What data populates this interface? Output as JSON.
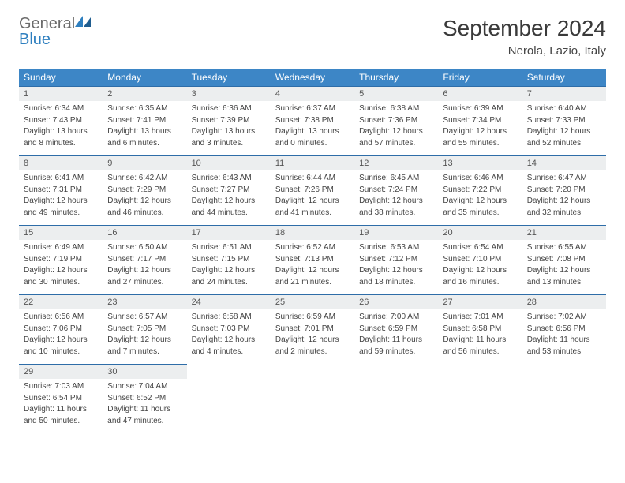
{
  "logo": {
    "textGray": "General",
    "textBlue": "Blue"
  },
  "title": "September 2024",
  "location": "Nerola, Lazio, Italy",
  "colors": {
    "headerBg": "#3d86c6",
    "headerText": "#ffffff",
    "dayNumBg": "#eceeef",
    "borderTop": "#2e6da8",
    "logoGray": "#6b6b6b",
    "logoBlue": "#2e7fbf"
  },
  "weekdays": [
    "Sunday",
    "Monday",
    "Tuesday",
    "Wednesday",
    "Thursday",
    "Friday",
    "Saturday"
  ],
  "weeks": [
    [
      {
        "n": "1",
        "sr": "Sunrise: 6:34 AM",
        "ss": "Sunset: 7:43 PM",
        "dl1": "Daylight: 13 hours",
        "dl2": "and 8 minutes."
      },
      {
        "n": "2",
        "sr": "Sunrise: 6:35 AM",
        "ss": "Sunset: 7:41 PM",
        "dl1": "Daylight: 13 hours",
        "dl2": "and 6 minutes."
      },
      {
        "n": "3",
        "sr": "Sunrise: 6:36 AM",
        "ss": "Sunset: 7:39 PM",
        "dl1": "Daylight: 13 hours",
        "dl2": "and 3 minutes."
      },
      {
        "n": "4",
        "sr": "Sunrise: 6:37 AM",
        "ss": "Sunset: 7:38 PM",
        "dl1": "Daylight: 13 hours",
        "dl2": "and 0 minutes."
      },
      {
        "n": "5",
        "sr": "Sunrise: 6:38 AM",
        "ss": "Sunset: 7:36 PM",
        "dl1": "Daylight: 12 hours",
        "dl2": "and 57 minutes."
      },
      {
        "n": "6",
        "sr": "Sunrise: 6:39 AM",
        "ss": "Sunset: 7:34 PM",
        "dl1": "Daylight: 12 hours",
        "dl2": "and 55 minutes."
      },
      {
        "n": "7",
        "sr": "Sunrise: 6:40 AM",
        "ss": "Sunset: 7:33 PM",
        "dl1": "Daylight: 12 hours",
        "dl2": "and 52 minutes."
      }
    ],
    [
      {
        "n": "8",
        "sr": "Sunrise: 6:41 AM",
        "ss": "Sunset: 7:31 PM",
        "dl1": "Daylight: 12 hours",
        "dl2": "and 49 minutes."
      },
      {
        "n": "9",
        "sr": "Sunrise: 6:42 AM",
        "ss": "Sunset: 7:29 PM",
        "dl1": "Daylight: 12 hours",
        "dl2": "and 46 minutes."
      },
      {
        "n": "10",
        "sr": "Sunrise: 6:43 AM",
        "ss": "Sunset: 7:27 PM",
        "dl1": "Daylight: 12 hours",
        "dl2": "and 44 minutes."
      },
      {
        "n": "11",
        "sr": "Sunrise: 6:44 AM",
        "ss": "Sunset: 7:26 PM",
        "dl1": "Daylight: 12 hours",
        "dl2": "and 41 minutes."
      },
      {
        "n": "12",
        "sr": "Sunrise: 6:45 AM",
        "ss": "Sunset: 7:24 PM",
        "dl1": "Daylight: 12 hours",
        "dl2": "and 38 minutes."
      },
      {
        "n": "13",
        "sr": "Sunrise: 6:46 AM",
        "ss": "Sunset: 7:22 PM",
        "dl1": "Daylight: 12 hours",
        "dl2": "and 35 minutes."
      },
      {
        "n": "14",
        "sr": "Sunrise: 6:47 AM",
        "ss": "Sunset: 7:20 PM",
        "dl1": "Daylight: 12 hours",
        "dl2": "and 32 minutes."
      }
    ],
    [
      {
        "n": "15",
        "sr": "Sunrise: 6:49 AM",
        "ss": "Sunset: 7:19 PM",
        "dl1": "Daylight: 12 hours",
        "dl2": "and 30 minutes."
      },
      {
        "n": "16",
        "sr": "Sunrise: 6:50 AM",
        "ss": "Sunset: 7:17 PM",
        "dl1": "Daylight: 12 hours",
        "dl2": "and 27 minutes."
      },
      {
        "n": "17",
        "sr": "Sunrise: 6:51 AM",
        "ss": "Sunset: 7:15 PM",
        "dl1": "Daylight: 12 hours",
        "dl2": "and 24 minutes."
      },
      {
        "n": "18",
        "sr": "Sunrise: 6:52 AM",
        "ss": "Sunset: 7:13 PM",
        "dl1": "Daylight: 12 hours",
        "dl2": "and 21 minutes."
      },
      {
        "n": "19",
        "sr": "Sunrise: 6:53 AM",
        "ss": "Sunset: 7:12 PM",
        "dl1": "Daylight: 12 hours",
        "dl2": "and 18 minutes."
      },
      {
        "n": "20",
        "sr": "Sunrise: 6:54 AM",
        "ss": "Sunset: 7:10 PM",
        "dl1": "Daylight: 12 hours",
        "dl2": "and 16 minutes."
      },
      {
        "n": "21",
        "sr": "Sunrise: 6:55 AM",
        "ss": "Sunset: 7:08 PM",
        "dl1": "Daylight: 12 hours",
        "dl2": "and 13 minutes."
      }
    ],
    [
      {
        "n": "22",
        "sr": "Sunrise: 6:56 AM",
        "ss": "Sunset: 7:06 PM",
        "dl1": "Daylight: 12 hours",
        "dl2": "and 10 minutes."
      },
      {
        "n": "23",
        "sr": "Sunrise: 6:57 AM",
        "ss": "Sunset: 7:05 PM",
        "dl1": "Daylight: 12 hours",
        "dl2": "and 7 minutes."
      },
      {
        "n": "24",
        "sr": "Sunrise: 6:58 AM",
        "ss": "Sunset: 7:03 PM",
        "dl1": "Daylight: 12 hours",
        "dl2": "and 4 minutes."
      },
      {
        "n": "25",
        "sr": "Sunrise: 6:59 AM",
        "ss": "Sunset: 7:01 PM",
        "dl1": "Daylight: 12 hours",
        "dl2": "and 2 minutes."
      },
      {
        "n": "26",
        "sr": "Sunrise: 7:00 AM",
        "ss": "Sunset: 6:59 PM",
        "dl1": "Daylight: 11 hours",
        "dl2": "and 59 minutes."
      },
      {
        "n": "27",
        "sr": "Sunrise: 7:01 AM",
        "ss": "Sunset: 6:58 PM",
        "dl1": "Daylight: 11 hours",
        "dl2": "and 56 minutes."
      },
      {
        "n": "28",
        "sr": "Sunrise: 7:02 AM",
        "ss": "Sunset: 6:56 PM",
        "dl1": "Daylight: 11 hours",
        "dl2": "and 53 minutes."
      }
    ],
    [
      {
        "n": "29",
        "sr": "Sunrise: 7:03 AM",
        "ss": "Sunset: 6:54 PM",
        "dl1": "Daylight: 11 hours",
        "dl2": "and 50 minutes."
      },
      {
        "n": "30",
        "sr": "Sunrise: 7:04 AM",
        "ss": "Sunset: 6:52 PM",
        "dl1": "Daylight: 11 hours",
        "dl2": "and 47 minutes."
      },
      null,
      null,
      null,
      null,
      null
    ]
  ]
}
